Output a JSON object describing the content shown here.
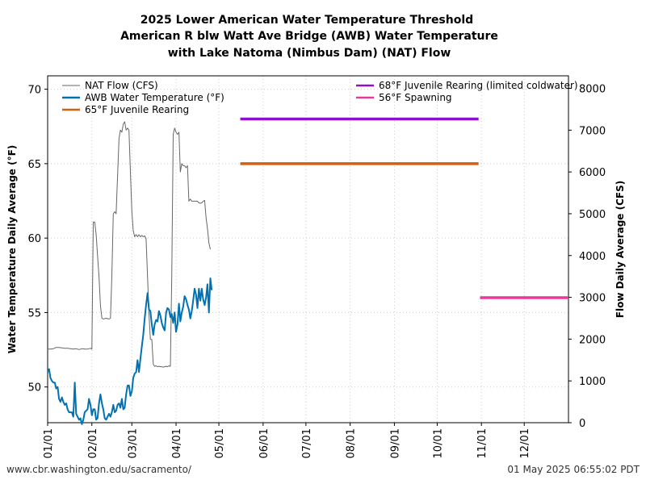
{
  "chart_data": {
    "type": "line",
    "title": [
      "2025 Lower American Water Temperature Threshold",
      "American R blw Watt Ave Bridge (AWB) Water Temperature",
      "with Lake Natoma (Nimbus Dam) (NAT) Flow"
    ],
    "ylabel_left": "Water Temperature Daily Average (°F)",
    "ylabel_right": "Flow Daily Average (CFS)",
    "x_ticks": [
      "01/01",
      "02/01",
      "03/01",
      "04/01",
      "05/01",
      "06/01",
      "07/01",
      "08/01",
      "09/01",
      "10/01",
      "11/01",
      "12/01"
    ],
    "y_left_ticks": [
      50,
      55,
      60,
      65,
      70
    ],
    "y_right_ticks": [
      0,
      1000,
      2000,
      3000,
      4000,
      5000,
      6000,
      7000,
      8000
    ],
    "y_left_range": [
      47.6,
      70.9
    ],
    "y_right_range": [
      0,
      8300
    ],
    "x_range_days": [
      1,
      366
    ],
    "grid": true,
    "legend": {
      "left": [
        "NAT Flow (CFS)",
        "AWB Water Temperature (°F)",
        "65°F Juvenile Rearing"
      ],
      "right": [
        "68°F Juvenile Rearing (limited coldwater)",
        "56°F Spawning"
      ]
    },
    "series": [
      {
        "name": "NAT Flow (CFS)",
        "axis": "right",
        "color": "#666666",
        "points": [
          [
            1,
            1760
          ],
          [
            3,
            1760
          ],
          [
            5,
            1770
          ],
          [
            7,
            1800
          ],
          [
            9,
            1800
          ],
          [
            11,
            1790
          ],
          [
            13,
            1780
          ],
          [
            15,
            1780
          ],
          [
            17,
            1770
          ],
          [
            19,
            1760
          ],
          [
            21,
            1770
          ],
          [
            23,
            1750
          ],
          [
            25,
            1770
          ],
          [
            27,
            1760
          ],
          [
            29,
            1760
          ],
          [
            31,
            1780
          ],
          [
            32,
            1760
          ],
          [
            33,
            4800
          ],
          [
            34,
            4800
          ],
          [
            35,
            4500
          ],
          [
            36,
            4000
          ],
          [
            37,
            3500
          ],
          [
            38,
            2800
          ],
          [
            39,
            2500
          ],
          [
            40,
            2480
          ],
          [
            42,
            2500
          ],
          [
            44,
            2480
          ],
          [
            45,
            2500
          ],
          [
            46,
            3500
          ],
          [
            47,
            5000
          ],
          [
            48,
            5050
          ],
          [
            49,
            5000
          ],
          [
            50,
            5900
          ],
          [
            51,
            6800
          ],
          [
            52,
            7000
          ],
          [
            53,
            6950
          ],
          [
            54,
            7150
          ],
          [
            55,
            7200
          ],
          [
            56,
            7000
          ],
          [
            57,
            7050
          ],
          [
            58,
            7000
          ],
          [
            59,
            6000
          ],
          [
            60,
            5050
          ],
          [
            61,
            4600
          ],
          [
            62,
            4450
          ],
          [
            63,
            4500
          ],
          [
            64,
            4450
          ],
          [
            65,
            4500
          ],
          [
            66,
            4450
          ],
          [
            67,
            4480
          ],
          [
            68,
            4450
          ],
          [
            69,
            4470
          ],
          [
            70,
            4400
          ],
          [
            71,
            3500
          ],
          [
            72,
            2600
          ],
          [
            73,
            2000
          ],
          [
            74,
            1990
          ],
          [
            75,
            1400
          ],
          [
            76,
            1350
          ],
          [
            77,
            1360
          ],
          [
            78,
            1340
          ],
          [
            79,
            1350
          ],
          [
            80,
            1340
          ],
          [
            81,
            1340
          ],
          [
            82,
            1330
          ],
          [
            83,
            1340
          ],
          [
            84,
            1350
          ],
          [
            85,
            1340
          ],
          [
            86,
            1360
          ],
          [
            87,
            1350
          ],
          [
            88,
            3500
          ],
          [
            89,
            6900
          ],
          [
            90,
            7050
          ],
          [
            91,
            6950
          ],
          [
            92,
            6900
          ],
          [
            93,
            6950
          ],
          [
            94,
            6000
          ],
          [
            95,
            6200
          ],
          [
            96,
            6150
          ],
          [
            97,
            6150
          ],
          [
            98,
            6100
          ],
          [
            99,
            6150
          ],
          [
            100,
            5300
          ],
          [
            101,
            5350
          ],
          [
            102,
            5300
          ],
          [
            103,
            5300
          ],
          [
            104,
            5300
          ],
          [
            105,
            5300
          ],
          [
            106,
            5300
          ],
          [
            107,
            5260
          ],
          [
            108,
            5250
          ],
          [
            109,
            5260
          ],
          [
            110,
            5300
          ],
          [
            111,
            5320
          ],
          [
            112,
            4900
          ],
          [
            113,
            4650
          ],
          [
            114,
            4300
          ],
          [
            115,
            4150
          ]
        ]
      },
      {
        "name": "AWB Water Temperature (°F)",
        "axis": "left",
        "color": "#0072b2",
        "points": [
          [
            1,
            51.0
          ],
          [
            2,
            51.2
          ],
          [
            3,
            50.6
          ],
          [
            4,
            50.4
          ],
          [
            5,
            50.3
          ],
          [
            6,
            50.3
          ],
          [
            7,
            49.9
          ],
          [
            8,
            50.0
          ],
          [
            9,
            49.2
          ],
          [
            10,
            49.0
          ],
          [
            11,
            49.3
          ],
          [
            12,
            49.0
          ],
          [
            13,
            48.8
          ],
          [
            14,
            48.9
          ],
          [
            15,
            48.5
          ],
          [
            16,
            48.3
          ],
          [
            17,
            48.3
          ],
          [
            18,
            48.3
          ],
          [
            19,
            48.0
          ],
          [
            20,
            50.3
          ],
          [
            21,
            48.2
          ],
          [
            22,
            48.0
          ],
          [
            23,
            47.8
          ],
          [
            24,
            47.9
          ],
          [
            25,
            47.5
          ],
          [
            26,
            47.8
          ],
          [
            27,
            48.3
          ],
          [
            28,
            48.4
          ],
          [
            29,
            48.5
          ],
          [
            30,
            49.2
          ],
          [
            31,
            48.8
          ],
          [
            32,
            48.1
          ],
          [
            33,
            48.5
          ],
          [
            34,
            48.5
          ],
          [
            35,
            47.8
          ],
          [
            36,
            47.9
          ],
          [
            37,
            48.9
          ],
          [
            38,
            49.5
          ],
          [
            39,
            48.9
          ],
          [
            40,
            48.5
          ],
          [
            41,
            47.9
          ],
          [
            42,
            47.8
          ],
          [
            43,
            48.0
          ],
          [
            44,
            48.2
          ],
          [
            45,
            48.0
          ],
          [
            46,
            48.3
          ],
          [
            47,
            48.8
          ],
          [
            48,
            48.3
          ],
          [
            49,
            48.4
          ],
          [
            50,
            48.8
          ],
          [
            51,
            48.9
          ],
          [
            52,
            48.6
          ],
          [
            53,
            49.2
          ],
          [
            54,
            48.5
          ],
          [
            55,
            48.6
          ],
          [
            56,
            49.5
          ],
          [
            57,
            50.1
          ],
          [
            58,
            50.1
          ],
          [
            59,
            49.4
          ],
          [
            60,
            49.7
          ],
          [
            61,
            50.6
          ],
          [
            62,
            50.9
          ],
          [
            63,
            51.0
          ],
          [
            64,
            51.8
          ],
          [
            65,
            51.0
          ],
          [
            66,
            51.9
          ],
          [
            67,
            52.7
          ],
          [
            68,
            53.5
          ],
          [
            69,
            54.6
          ],
          [
            70,
            55.5
          ],
          [
            71,
            56.3
          ],
          [
            72,
            55.2
          ],
          [
            73,
            55.1
          ],
          [
            74,
            54.2
          ],
          [
            75,
            53.5
          ],
          [
            76,
            54.2
          ],
          [
            77,
            54.5
          ],
          [
            78,
            54.4
          ],
          [
            79,
            55.1
          ],
          [
            80,
            54.8
          ],
          [
            81,
            54.3
          ],
          [
            82,
            54.0
          ],
          [
            83,
            53.8
          ],
          [
            84,
            55.0
          ],
          [
            85,
            55.3
          ],
          [
            86,
            55.2
          ],
          [
            87,
            54.7
          ],
          [
            88,
            54.9
          ],
          [
            89,
            54.3
          ],
          [
            90,
            55.0
          ],
          [
            91,
            53.7
          ],
          [
            92,
            54.2
          ],
          [
            93,
            55.6
          ],
          [
            94,
            54.4
          ],
          [
            95,
            55.0
          ],
          [
            96,
            55.4
          ],
          [
            97,
            56.1
          ],
          [
            98,
            55.9
          ],
          [
            99,
            55.5
          ],
          [
            100,
            55.2
          ],
          [
            101,
            54.6
          ],
          [
            102,
            55.1
          ],
          [
            103,
            55.8
          ],
          [
            104,
            56.6
          ],
          [
            105,
            56.2
          ],
          [
            106,
            55.3
          ],
          [
            107,
            56.6
          ],
          [
            108,
            55.8
          ],
          [
            109,
            56.6
          ],
          [
            110,
            55.9
          ],
          [
            111,
            55.5
          ],
          [
            112,
            56.0
          ],
          [
            113,
            56.9
          ],
          [
            114,
            55.0
          ],
          [
            115,
            57.3
          ],
          [
            116,
            56.5
          ]
        ]
      }
    ],
    "thresholds": [
      {
        "name": "68°F Juvenile Rearing (limited coldwater)",
        "value": 68,
        "x_start": 136,
        "x_end": 303,
        "color": "#8c10d0"
      },
      {
        "name": "65°F Juvenile Rearing",
        "value": 65,
        "x_start": 136,
        "x_end": 303,
        "color": "#d2600e"
      },
      {
        "name": "56°F Spawning",
        "value": 56,
        "x_start": 304,
        "x_end": 366,
        "color": "#e8389a"
      }
    ]
  },
  "footer": {
    "source_url": "www.cbr.washington.edu/sacramento/",
    "timestamp": "01 May 2025 06:55:02 PDT"
  }
}
